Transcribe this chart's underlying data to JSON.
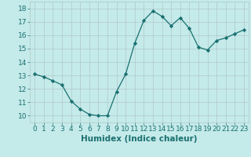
{
  "x": [
    0,
    1,
    2,
    3,
    4,
    5,
    6,
    7,
    8,
    9,
    10,
    11,
    12,
    13,
    14,
    15,
    16,
    17,
    18,
    19,
    20,
    21,
    22,
    23
  ],
  "y": [
    13.1,
    12.9,
    12.6,
    12.3,
    11.1,
    10.5,
    10.1,
    10.0,
    10.0,
    11.8,
    13.1,
    15.4,
    17.1,
    17.8,
    17.4,
    16.7,
    17.3,
    16.5,
    15.1,
    14.9,
    15.6,
    15.8,
    16.1,
    16.4
  ],
  "line_color": "#1a7070",
  "marker": "D",
  "marker_size": 2.2,
  "bg_color": "#c5eaea",
  "grid_color": "#b0c8c8",
  "xlabel": "Humidex (Indice chaleur)",
  "ylim": [
    9.5,
    18.5
  ],
  "yticks": [
    10,
    11,
    12,
    13,
    14,
    15,
    16,
    17,
    18
  ],
  "tick_color": "#1a7070",
  "label_fontsize": 7.5,
  "tick_fontsize": 6.5
}
